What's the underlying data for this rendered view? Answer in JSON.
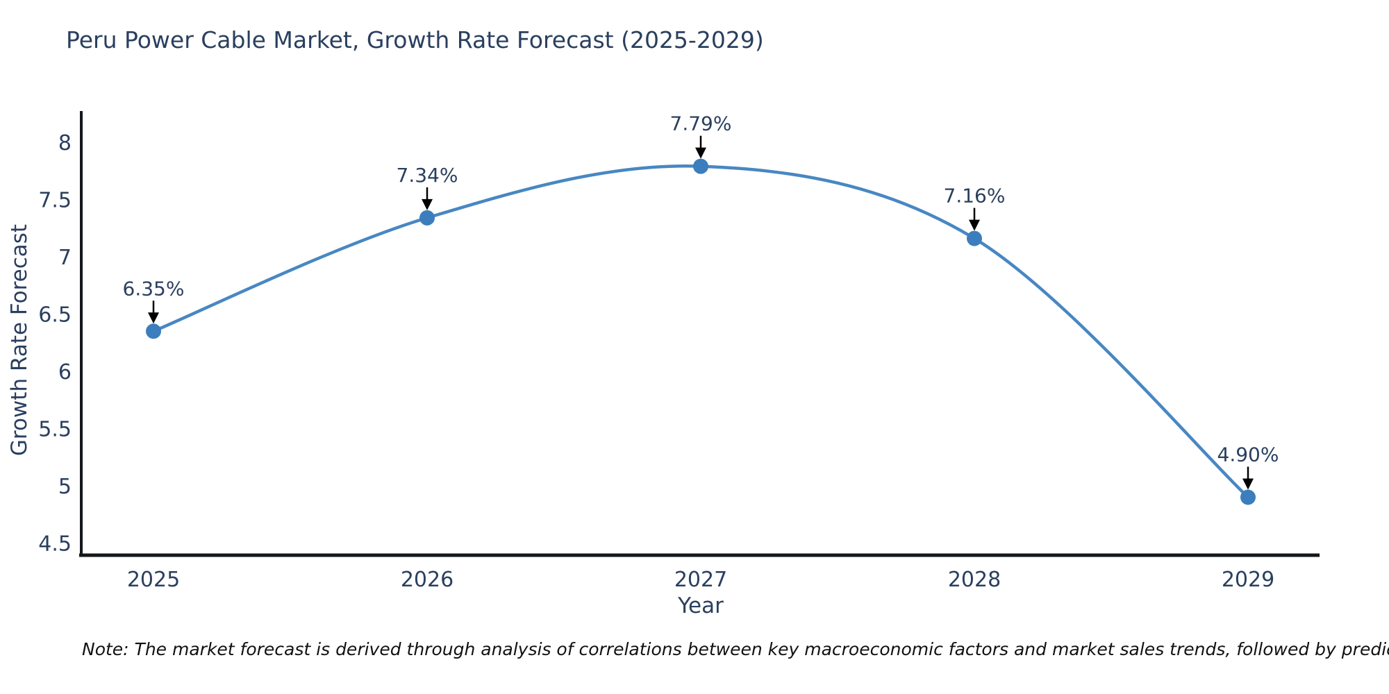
{
  "page": {
    "title": "Peru Power Cable Market, Growth Rate Forecast (2025-2029)",
    "note": "Note: The market forecast is derived through analysis of correlations between key macroeconomic factors and market sales trends, followed by predictive modeling to project future sales"
  },
  "chart_data": {
    "type": "line",
    "title": "Peru Power Cable Market, Growth Rate Forecast (2025-2029)",
    "xlabel": "Year",
    "ylabel": "Growth Rate Forecast",
    "x": [
      2025,
      2026,
      2027,
      2028,
      2029
    ],
    "series": [
      {
        "name": "Growth Rate Forecast",
        "values": [
          6.35,
          7.34,
          7.79,
          7.16,
          4.9
        ],
        "point_labels": [
          "6.35%",
          "7.34%",
          "7.79%",
          "7.16%",
          "4.90%"
        ]
      }
    ],
    "line_shape": "spline",
    "markers": true,
    "annotations_arrows": true,
    "yticks": [
      8,
      7.5,
      7,
      6.5,
      6,
      5.5,
      5,
      4.5
    ],
    "ylim": [
      4.39,
      8.28
    ],
    "xlim": [
      2024.74,
      2029.26
    ],
    "grid": false,
    "legend": false,
    "colors": {
      "line": "#4887c2",
      "marker": "#3c7ebd",
      "axis_line": "#14181c",
      "tick_text": "#2a3f5f",
      "annotation_text": "#2a3f5f",
      "annotation_arrow": "#000000",
      "title_text": "#2a3f5f",
      "background": "#ffffff"
    }
  }
}
